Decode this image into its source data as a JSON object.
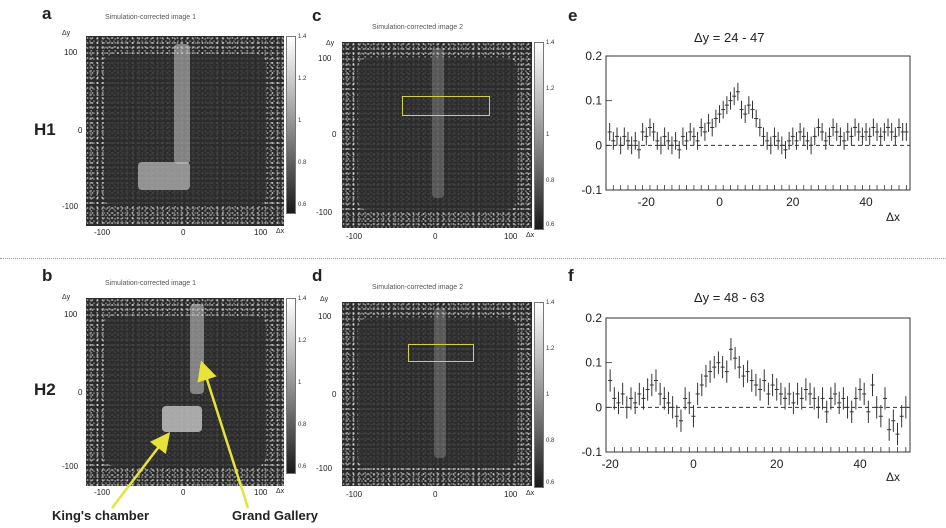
{
  "colors": {
    "rect_outline": "#d4d04a",
    "arrow": "#e8e33a",
    "error_bar": "#333333"
  },
  "panels": {
    "a": {
      "letter": "a",
      "subtitle": "Simulation-corrected image 1",
      "yticks": [
        "100",
        "0",
        "-100"
      ],
      "xticks": [
        "-100",
        "0",
        "100"
      ],
      "yunit": "Δy",
      "xunit": "Δx",
      "cb_ticks": [
        "1.4",
        "1.2",
        "1",
        "0.8",
        "0.6"
      ]
    },
    "b": {
      "letter": "b",
      "subtitle": "Simulation-corrected image 1",
      "yticks": [
        "100",
        "0",
        "-100"
      ],
      "xticks": [
        "-100",
        "0",
        "100"
      ],
      "yunit": "Δy",
      "xunit": "Δx",
      "cb_ticks": [
        "1.4",
        "1.2",
        "1",
        "0.8",
        "0.6"
      ]
    },
    "c": {
      "letter": "c",
      "subtitle": "Simulation-corrected image 2",
      "yticks": [
        "100",
        "0",
        "-100"
      ],
      "xticks": [
        "-100",
        "0",
        "100"
      ],
      "yunit": "Δy",
      "xunit": "Δx",
      "cb_ticks": [
        "1.4",
        "1.2",
        "1",
        "0.8",
        "0.6"
      ]
    },
    "d": {
      "letter": "d",
      "subtitle": "Simulation-corrected image 2",
      "yticks": [
        "100",
        "0",
        "-100"
      ],
      "xticks": [
        "-100",
        "0",
        "100"
      ],
      "yunit": "Δy",
      "xunit": "Δx",
      "cb_ticks": [
        "1.4",
        "1.2",
        "1",
        "0.8",
        "0.6"
      ]
    },
    "e": {
      "letter": "e"
    },
    "f": {
      "letter": "f"
    }
  },
  "rows": {
    "h1": "H1",
    "h2": "H2"
  },
  "annotations": {
    "kings_chamber": "King's chamber",
    "grand_gallery": "Grand Gallery"
  },
  "chart_data": [
    {
      "type": "scatter",
      "title": "Δy = 24 - 47",
      "xlabel": "Δx",
      "ylabel": "",
      "xlim": [
        -31,
        52
      ],
      "ylim": [
        -0.1,
        0.2
      ],
      "xticks": [
        -20,
        0,
        20,
        40
      ],
      "yticks": [
        -0.1,
        0,
        0.1,
        0.2
      ],
      "reference_line": 0,
      "series": [
        {
          "x": [
            -30,
            -29,
            -28,
            -27,
            -26,
            -25,
            -24,
            -23,
            -22,
            -21,
            -20,
            -19,
            -18,
            -17,
            -16,
            -15,
            -14,
            -13,
            -12,
            -11,
            -10,
            -9,
            -8,
            -7,
            -6,
            -5,
            -4,
            -3,
            -2,
            -1,
            0,
            1,
            2,
            3,
            4,
            5,
            6,
            7,
            8,
            9,
            10,
            11,
            12,
            13,
            14,
            15,
            16,
            17,
            18,
            19,
            20,
            21,
            22,
            23,
            24,
            25,
            26,
            27,
            28,
            29,
            30,
            31,
            32,
            33,
            34,
            35,
            36,
            37,
            38,
            39,
            40,
            41,
            42,
            43,
            44,
            45,
            46,
            47,
            48,
            49,
            50,
            51
          ],
          "y": [
            0.03,
            0.01,
            0.02,
            0.0,
            0.02,
            0.01,
            0.0,
            0.01,
            -0.01,
            0.03,
            0.02,
            0.04,
            0.03,
            0.01,
            0.0,
            0.02,
            0.01,
            0.0,
            0.01,
            -0.01,
            0.02,
            0.01,
            0.03,
            0.02,
            0.01,
            0.04,
            0.03,
            0.05,
            0.04,
            0.06,
            0.07,
            0.08,
            0.09,
            0.1,
            0.11,
            0.12,
            0.08,
            0.07,
            0.09,
            0.08,
            0.06,
            0.04,
            0.02,
            0.01,
            0.0,
            0.02,
            0.01,
            0.0,
            -0.01,
            0.01,
            0.02,
            0.01,
            0.03,
            0.02,
            0.01,
            0.0,
            0.02,
            0.04,
            0.03,
            0.01,
            0.02,
            0.04,
            0.03,
            0.02,
            0.01,
            0.03,
            0.02,
            0.04,
            0.03,
            0.02,
            0.03,
            0.02,
            0.04,
            0.03,
            0.02,
            0.03,
            0.04,
            0.03,
            0.02,
            0.04,
            0.03,
            0.03
          ],
          "err": 0.02
        }
      ]
    },
    {
      "type": "scatter",
      "title": "Δy = 48 - 63",
      "xlabel": "Δx",
      "ylabel": "",
      "xlim": [
        -21,
        52
      ],
      "ylim": [
        -0.1,
        0.2
      ],
      "xticks": [
        -20,
        0,
        20,
        40
      ],
      "yticks": [
        -0.1,
        0,
        0.1,
        0.2
      ],
      "reference_line": 0,
      "series": [
        {
          "x": [
            -20,
            -19,
            -18,
            -17,
            -16,
            -15,
            -14,
            -13,
            -12,
            -11,
            -10,
            -9,
            -8,
            -7,
            -6,
            -5,
            -4,
            -3,
            -2,
            -1,
            0,
            1,
            2,
            3,
            4,
            5,
            6,
            7,
            8,
            9,
            10,
            11,
            12,
            13,
            14,
            15,
            16,
            17,
            18,
            19,
            20,
            21,
            22,
            23,
            24,
            25,
            26,
            27,
            28,
            29,
            30,
            31,
            32,
            33,
            34,
            35,
            36,
            37,
            38,
            39,
            40,
            41,
            42,
            43,
            44,
            45,
            46,
            47,
            48,
            49,
            50,
            51
          ],
          "y": [
            0.06,
            0.02,
            0.01,
            0.03,
            0.0,
            0.02,
            0.01,
            0.03,
            0.02,
            0.04,
            0.05,
            0.06,
            0.03,
            0.02,
            0.01,
            0.0,
            -0.02,
            -0.03,
            0.02,
            0.01,
            -0.02,
            0.03,
            0.05,
            0.07,
            0.08,
            0.09,
            0.1,
            0.09,
            0.08,
            0.13,
            0.11,
            0.09,
            0.07,
            0.08,
            0.06,
            0.05,
            0.04,
            0.06,
            0.03,
            0.05,
            0.04,
            0.03,
            0.02,
            0.03,
            0.01,
            0.03,
            0.02,
            0.04,
            0.03,
            0.02,
            0.0,
            0.02,
            -0.01,
            0.02,
            0.03,
            0.01,
            0.02,
            0.0,
            -0.01,
            0.02,
            0.04,
            0.03,
            -0.01,
            0.05,
            0.0,
            -0.02,
            0.02,
            -0.05,
            -0.03,
            -0.06,
            -0.02,
            0.0
          ],
          "err": 0.025
        }
      ]
    }
  ]
}
